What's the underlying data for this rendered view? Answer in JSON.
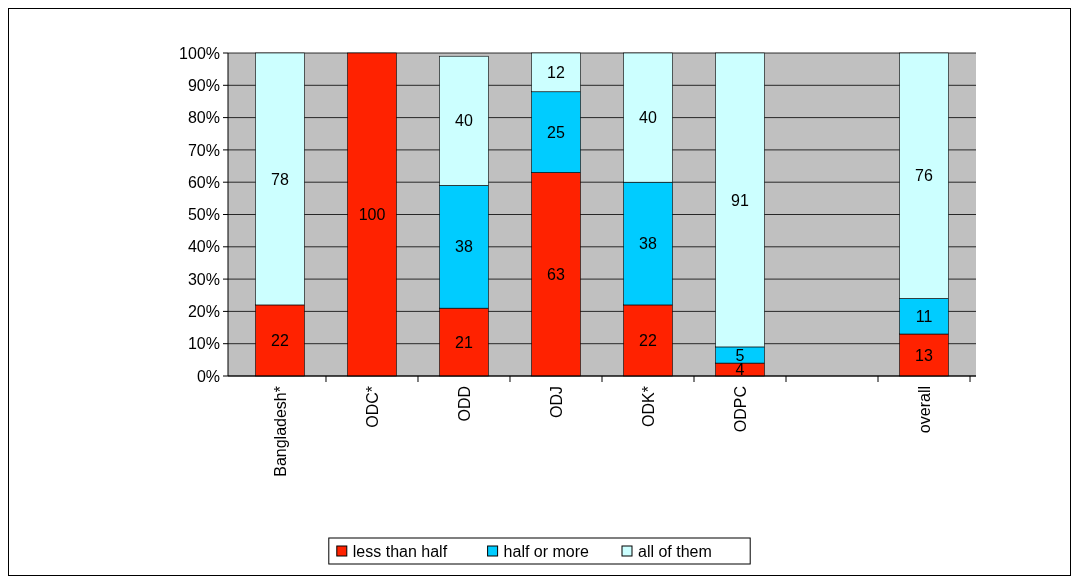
{
  "chart_data": {
    "type": "bar",
    "stacked": true,
    "categories": [
      "Bangladesh*",
      "ODC*",
      "ODD",
      "ODJ",
      "ODK*",
      "ODPC",
      null,
      "overall"
    ],
    "series": [
      {
        "name": "less than half",
        "color": "#ff2200",
        "values": [
          22,
          100,
          21,
          63,
          22,
          4,
          null,
          13
        ]
      },
      {
        "name": "half or more",
        "color": "#00ccff",
        "values": [
          null,
          null,
          38,
          25,
          38,
          5,
          null,
          11
        ]
      },
      {
        "name": "all of them",
        "color": "#ccffff",
        "values": [
          78,
          null,
          40,
          12,
          40,
          91,
          null,
          76
        ]
      }
    ],
    "ylim": [
      0,
      100
    ],
    "yticks": [
      {
        "value": 0,
        "label": "0%"
      },
      {
        "value": 10,
        "label": "10%"
      },
      {
        "value": 20,
        "label": "20%"
      },
      {
        "value": 30,
        "label": "30%"
      },
      {
        "value": 40,
        "label": "40%"
      },
      {
        "value": 50,
        "label": "50%"
      },
      {
        "value": 60,
        "label": "60%"
      },
      {
        "value": 70,
        "label": "70%"
      },
      {
        "value": 80,
        "label": "80%"
      },
      {
        "value": 90,
        "label": "90%"
      },
      {
        "value": 100,
        "label": "100%"
      }
    ],
    "grid": "y",
    "data_labels": true,
    "legend": "bottom"
  }
}
